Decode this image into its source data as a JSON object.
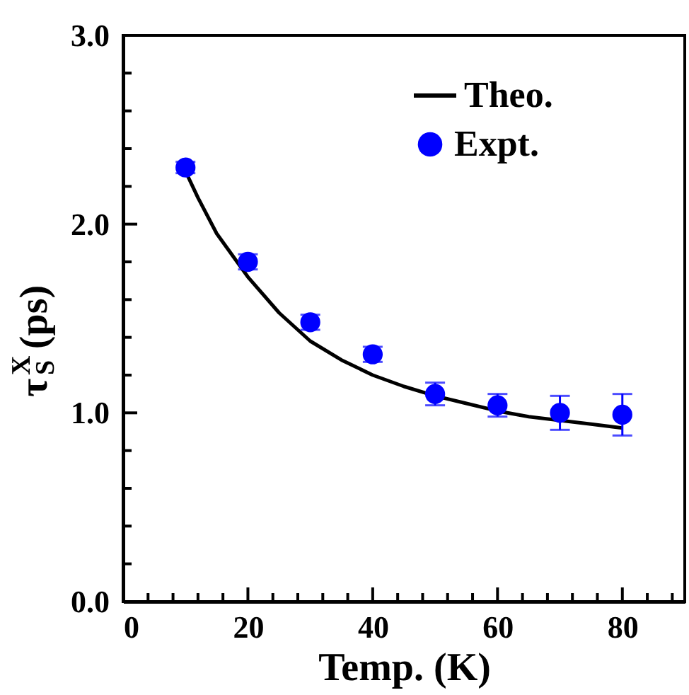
{
  "chart_data": {
    "type": "scatter",
    "xlabel": "Temp. (K)",
    "ylabel": "τ$_{S}$$^{X}$ (ps)",
    "xlim": [
      0,
      90
    ],
    "ylim": [
      0,
      3
    ],
    "xticks": [
      0,
      {
        "value": 4,
        "label": null
      },
      {
        "value": 8,
        "label": null
      },
      {
        "value": 12,
        "label": null
      },
      {
        "value": 16,
        "label": null
      },
      20,
      {
        "value": 24,
        "label": null
      },
      {
        "value": 28,
        "label": null
      },
      {
        "value": 32,
        "label": null
      },
      {
        "value": 36,
        "label": null
      },
      40,
      {
        "value": 44,
        "label": null
      },
      {
        "value": 48,
        "label": null
      },
      {
        "value": 52,
        "label": null
      },
      {
        "value": 56,
        "label": null
      },
      60,
      {
        "value": 64,
        "label": null
      },
      {
        "value": 68,
        "label": null
      },
      {
        "value": 72,
        "label": null
      },
      {
        "value": 76,
        "label": null
      },
      80,
      {
        "value": 84,
        "label": null
      },
      {
        "value": 88,
        "label": null
      }
    ],
    "yticks": [
      {
        "value": 0,
        "label": "0.0"
      },
      {
        "value": 0.2,
        "label": null
      },
      {
        "value": 0.4,
        "label": null
      },
      {
        "value": 0.6,
        "label": null
      },
      {
        "value": 0.8,
        "label": null
      },
      {
        "value": 1,
        "label": "1.0"
      },
      {
        "value": 1.2,
        "label": null
      },
      {
        "value": 1.4,
        "label": null
      },
      {
        "value": 1.6,
        "label": null
      },
      {
        "value": 1.8,
        "label": null
      },
      {
        "value": 2,
        "label": "2.0"
      },
      {
        "value": 2.2,
        "label": null
      },
      {
        "value": 2.4,
        "label": null
      },
      {
        "value": 2.6,
        "label": null
      },
      {
        "value": 2.8,
        "label": null
      },
      {
        "value": 3,
        "label": "3.0"
      }
    ],
    "grid": false,
    "legend": "top right",
    "series": [
      {
        "name": "Theo.",
        "type": "line",
        "color": "#000000",
        "line_style": "solid",
        "marker": "none",
        "x": [
          10,
          12,
          15,
          20,
          25,
          30,
          35,
          40,
          45,
          50,
          55,
          60,
          65,
          70,
          75,
          80
        ],
        "values": [
          2.28,
          2.14,
          1.95,
          1.72,
          1.53,
          1.38,
          1.28,
          1.2,
          1.14,
          1.09,
          1.05,
          1.01,
          0.98,
          0.96,
          0.94,
          0.92
        ]
      },
      {
        "name": "Expt.",
        "type": "scatter",
        "color": "#0000ff",
        "marker": "circle",
        "x": [
          10,
          20,
          30,
          40,
          50,
          60,
          70,
          80
        ],
        "values": [
          2.3,
          1.8,
          1.48,
          1.31,
          1.1,
          1.04,
          1.0,
          0.99
        ],
        "errors": [
          0.03,
          0.04,
          0.04,
          0.04,
          0.06,
          0.06,
          0.09,
          0.11
        ]
      }
    ]
  }
}
